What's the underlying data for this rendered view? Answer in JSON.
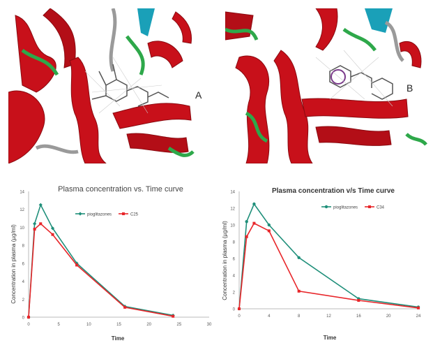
{
  "panels": {
    "a_label": "A",
    "b_label": "B"
  },
  "colors": {
    "helix": "#c8101a",
    "strand": "#1aa0b8",
    "loop_green": "#2ea84a",
    "loop_grey": "#9a9a9a",
    "pio": "#1f8f7a",
    "test": "#e8262a"
  },
  "chart_data": [
    {
      "type": "line",
      "title": "Plasma concentration vs. Time curve",
      "xlabel": "Time",
      "ylabel": "Concentration in plasma (µg/ml)",
      "xlim": [
        0,
        30
      ],
      "ylim": [
        0,
        14
      ],
      "xticks": [
        "0",
        "5",
        "10",
        "15",
        "20",
        "25",
        "30"
      ],
      "yticks": [
        "0",
        "2",
        "4",
        "6",
        "8",
        "10",
        "12",
        "14"
      ],
      "legend_position": "top-center",
      "series": [
        {
          "name": "pioglitazones",
          "color": "#1f8f7a",
          "x": [
            0,
            1,
            2,
            4,
            8,
            16,
            24
          ],
          "y": [
            0,
            10.4,
            12.5,
            9.9,
            6.0,
            1.2,
            0.2
          ]
        },
        {
          "name": "C25",
          "color": "#e8262a",
          "x": [
            0,
            1,
            2,
            4,
            8,
            16,
            24
          ],
          "y": [
            0,
            9.8,
            10.4,
            9.2,
            5.8,
            1.1,
            0.1
          ]
        }
      ]
    },
    {
      "type": "line",
      "title": "Plasma concentration v/s Time curve",
      "xlabel": "Time",
      "ylabel": "Concentration in plasma (µg/ml)",
      "xlim": [
        0,
        24
      ],
      "ylim": [
        0,
        14
      ],
      "xticks": [
        "0",
        "4",
        "8",
        "12",
        "16",
        "20",
        "24"
      ],
      "yticks": [
        "0",
        "2",
        "4",
        "6",
        "8",
        "10",
        "12",
        "14"
      ],
      "legend_position": "top-center",
      "series": [
        {
          "name": "pioglitazones",
          "color": "#1f8f7a",
          "x": [
            0,
            1,
            2,
            4,
            8,
            16,
            24
          ],
          "y": [
            0,
            10.4,
            12.5,
            10.0,
            6.1,
            1.2,
            0.2
          ]
        },
        {
          "name": "C34",
          "color": "#e8262a",
          "x": [
            0,
            1,
            2,
            4,
            8,
            16,
            24
          ],
          "y": [
            0,
            8.6,
            10.2,
            9.3,
            2.1,
            1.0,
            0.1
          ]
        }
      ]
    }
  ]
}
